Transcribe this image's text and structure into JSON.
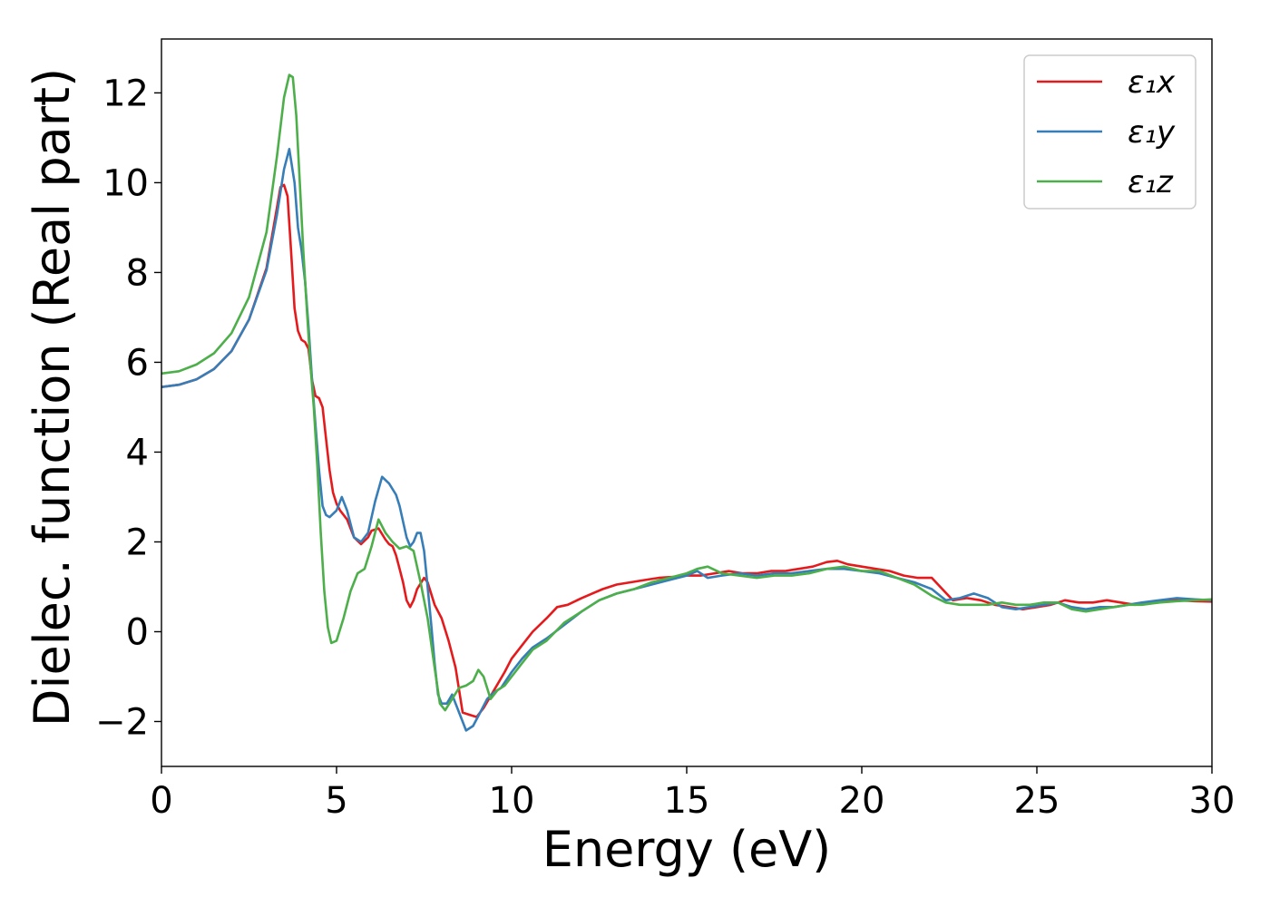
{
  "chart_data": {
    "type": "line",
    "title": "",
    "xlabel": "Energy (eV)",
    "ylabel": "Dielec. function (Real part)",
    "xlim": [
      0,
      30
    ],
    "ylim": [
      -3,
      13.2
    ],
    "xticks": [
      0,
      5,
      10,
      15,
      20,
      25,
      30
    ],
    "yticks": [
      -2,
      0,
      2,
      4,
      6,
      8,
      10,
      12
    ],
    "ytick_labels": [
      "−2",
      "0",
      "2",
      "4",
      "6",
      "8",
      "10",
      "12"
    ],
    "grid": false,
    "legend_position": "top-right",
    "series": [
      {
        "name": "ε₁x",
        "color": "#e41a1c",
        "points": [
          [
            0,
            5.45
          ],
          [
            0.5,
            5.5
          ],
          [
            1,
            5.62
          ],
          [
            1.5,
            5.85
          ],
          [
            2,
            6.25
          ],
          [
            2.5,
            6.95
          ],
          [
            3,
            8.1
          ],
          [
            3.2,
            9.0
          ],
          [
            3.4,
            9.9
          ],
          [
            3.5,
            9.95
          ],
          [
            3.6,
            9.7
          ],
          [
            3.7,
            8.5
          ],
          [
            3.8,
            7.2
          ],
          [
            3.9,
            6.7
          ],
          [
            4.0,
            6.5
          ],
          [
            4.1,
            6.45
          ],
          [
            4.2,
            6.3
          ],
          [
            4.3,
            5.6
          ],
          [
            4.4,
            5.25
          ],
          [
            4.5,
            5.2
          ],
          [
            4.6,
            5.0
          ],
          [
            4.7,
            4.3
          ],
          [
            4.8,
            3.6
          ],
          [
            4.9,
            3.1
          ],
          [
            5.0,
            2.85
          ],
          [
            5.1,
            2.7
          ],
          [
            5.3,
            2.5
          ],
          [
            5.5,
            2.1
          ],
          [
            5.7,
            1.95
          ],
          [
            5.9,
            2.1
          ],
          [
            6.0,
            2.25
          ],
          [
            6.2,
            2.3
          ],
          [
            6.4,
            2.05
          ],
          [
            6.5,
            1.95
          ],
          [
            6.6,
            1.9
          ],
          [
            6.7,
            1.7
          ],
          [
            6.8,
            1.4
          ],
          [
            6.9,
            1.1
          ],
          [
            7.0,
            0.7
          ],
          [
            7.1,
            0.55
          ],
          [
            7.2,
            0.7
          ],
          [
            7.3,
            0.95
          ],
          [
            7.5,
            1.2
          ],
          [
            7.6,
            1.1
          ],
          [
            7.8,
            0.6
          ],
          [
            8.0,
            0.3
          ],
          [
            8.2,
            -0.2
          ],
          [
            8.4,
            -0.8
          ],
          [
            8.5,
            -1.3
          ],
          [
            8.6,
            -1.8
          ],
          [
            8.8,
            -1.85
          ],
          [
            9.0,
            -1.9
          ],
          [
            9.2,
            -1.7
          ],
          [
            9.5,
            -1.3
          ],
          [
            9.8,
            -0.9
          ],
          [
            10,
            -0.6
          ],
          [
            10.3,
            -0.3
          ],
          [
            10.6,
            0.0
          ],
          [
            11,
            0.3
          ],
          [
            11.3,
            0.55
          ],
          [
            11.6,
            0.6
          ],
          [
            12,
            0.75
          ],
          [
            12.3,
            0.85
          ],
          [
            12.6,
            0.95
          ],
          [
            13,
            1.05
          ],
          [
            13.4,
            1.1
          ],
          [
            13.8,
            1.15
          ],
          [
            14.2,
            1.2
          ],
          [
            14.6,
            1.22
          ],
          [
            15,
            1.25
          ],
          [
            15.4,
            1.25
          ],
          [
            15.8,
            1.3
          ],
          [
            16.2,
            1.35
          ],
          [
            16.6,
            1.3
          ],
          [
            17,
            1.3
          ],
          [
            17.4,
            1.35
          ],
          [
            17.8,
            1.35
          ],
          [
            18.2,
            1.4
          ],
          [
            18.6,
            1.45
          ],
          [
            19,
            1.55
          ],
          [
            19.3,
            1.58
          ],
          [
            19.6,
            1.5
          ],
          [
            20,
            1.45
          ],
          [
            20.4,
            1.4
          ],
          [
            20.8,
            1.35
          ],
          [
            21.2,
            1.25
          ],
          [
            21.6,
            1.2
          ],
          [
            22,
            1.2
          ],
          [
            22.3,
            0.95
          ],
          [
            22.6,
            0.7
          ],
          [
            23,
            0.75
          ],
          [
            23.4,
            0.7
          ],
          [
            23.8,
            0.6
          ],
          [
            24.2,
            0.55
          ],
          [
            24.6,
            0.5
          ],
          [
            25,
            0.55
          ],
          [
            25.4,
            0.6
          ],
          [
            25.8,
            0.7
          ],
          [
            26.2,
            0.65
          ],
          [
            26.6,
            0.65
          ],
          [
            27,
            0.7
          ],
          [
            27.4,
            0.65
          ],
          [
            27.8,
            0.6
          ],
          [
            28.2,
            0.65
          ],
          [
            28.6,
            0.7
          ],
          [
            29,
            0.7
          ],
          [
            29.5,
            0.68
          ],
          [
            30,
            0.67
          ]
        ]
      },
      {
        "name": "ε₁y",
        "color": "#377eb8",
        "points": [
          [
            0,
            5.45
          ],
          [
            0.5,
            5.5
          ],
          [
            1,
            5.62
          ],
          [
            1.5,
            5.85
          ],
          [
            2,
            6.25
          ],
          [
            2.5,
            6.95
          ],
          [
            3,
            8.05
          ],
          [
            3.3,
            9.3
          ],
          [
            3.5,
            10.3
          ],
          [
            3.65,
            10.75
          ],
          [
            3.8,
            10.0
          ],
          [
            3.9,
            9.0
          ],
          [
            4.0,
            8.5
          ],
          [
            4.1,
            7.8
          ],
          [
            4.2,
            6.8
          ],
          [
            4.3,
            5.6
          ],
          [
            4.4,
            4.6
          ],
          [
            4.5,
            3.6
          ],
          [
            4.6,
            2.8
          ],
          [
            4.7,
            2.6
          ],
          [
            4.8,
            2.55
          ],
          [
            5.0,
            2.7
          ],
          [
            5.15,
            3.0
          ],
          [
            5.3,
            2.7
          ],
          [
            5.5,
            2.1
          ],
          [
            5.7,
            2.0
          ],
          [
            5.9,
            2.2
          ],
          [
            6.1,
            2.9
          ],
          [
            6.3,
            3.45
          ],
          [
            6.5,
            3.3
          ],
          [
            6.7,
            3.05
          ],
          [
            6.8,
            2.8
          ],
          [
            7.0,
            2.1
          ],
          [
            7.1,
            1.9
          ],
          [
            7.2,
            2.0
          ],
          [
            7.3,
            2.2
          ],
          [
            7.4,
            2.2
          ],
          [
            7.5,
            1.8
          ],
          [
            7.6,
            1.0
          ],
          [
            7.7,
            0.2
          ],
          [
            7.8,
            -0.7
          ],
          [
            7.9,
            -1.4
          ],
          [
            8.0,
            -1.6
          ],
          [
            8.15,
            -1.6
          ],
          [
            8.3,
            -1.4
          ],
          [
            8.5,
            -1.8
          ],
          [
            8.7,
            -2.2
          ],
          [
            8.9,
            -2.1
          ],
          [
            9.1,
            -1.8
          ],
          [
            9.3,
            -1.5
          ],
          [
            9.5,
            -1.35
          ],
          [
            9.7,
            -1.25
          ],
          [
            10,
            -0.9
          ],
          [
            10.3,
            -0.6
          ],
          [
            10.6,
            -0.35
          ],
          [
            11,
            -0.15
          ],
          [
            11.5,
            0.15
          ],
          [
            12,
            0.45
          ],
          [
            12.5,
            0.7
          ],
          [
            13,
            0.85
          ],
          [
            13.5,
            0.95
          ],
          [
            14,
            1.05
          ],
          [
            14.5,
            1.15
          ],
          [
            15,
            1.25
          ],
          [
            15.3,
            1.35
          ],
          [
            15.6,
            1.2
          ],
          [
            16,
            1.25
          ],
          [
            16.5,
            1.3
          ],
          [
            17,
            1.25
          ],
          [
            17.5,
            1.3
          ],
          [
            18,
            1.3
          ],
          [
            18.5,
            1.35
          ],
          [
            19,
            1.4
          ],
          [
            19.5,
            1.4
          ],
          [
            20,
            1.35
          ],
          [
            20.5,
            1.3
          ],
          [
            21,
            1.2
          ],
          [
            21.5,
            1.1
          ],
          [
            22,
            0.95
          ],
          [
            22.4,
            0.7
          ],
          [
            22.8,
            0.75
          ],
          [
            23.2,
            0.85
          ],
          [
            23.6,
            0.75
          ],
          [
            24,
            0.55
          ],
          [
            24.4,
            0.5
          ],
          [
            24.8,
            0.55
          ],
          [
            25.2,
            0.6
          ],
          [
            25.6,
            0.65
          ],
          [
            26,
            0.55
          ],
          [
            26.4,
            0.5
          ],
          [
            26.8,
            0.55
          ],
          [
            27.2,
            0.55
          ],
          [
            27.6,
            0.6
          ],
          [
            28,
            0.65
          ],
          [
            28.5,
            0.7
          ],
          [
            29,
            0.75
          ],
          [
            29.5,
            0.72
          ],
          [
            30,
            0.7
          ]
        ]
      },
      {
        "name": "ε₁z",
        "color": "#4daf4a",
        "points": [
          [
            0,
            5.75
          ],
          [
            0.5,
            5.8
          ],
          [
            1,
            5.95
          ],
          [
            1.5,
            6.2
          ],
          [
            2,
            6.65
          ],
          [
            2.5,
            7.45
          ],
          [
            3,
            8.9
          ],
          [
            3.3,
            10.6
          ],
          [
            3.5,
            11.9
          ],
          [
            3.65,
            12.4
          ],
          [
            3.75,
            12.35
          ],
          [
            3.85,
            11.5
          ],
          [
            3.95,
            10.0
          ],
          [
            4.05,
            8.5
          ],
          [
            4.15,
            7.2
          ],
          [
            4.25,
            6.0
          ],
          [
            4.35,
            5.0
          ],
          [
            4.45,
            3.7
          ],
          [
            4.55,
            2.2
          ],
          [
            4.65,
            0.9
          ],
          [
            4.75,
            0.1
          ],
          [
            4.85,
            -0.25
          ],
          [
            5.0,
            -0.2
          ],
          [
            5.2,
            0.3
          ],
          [
            5.4,
            0.9
          ],
          [
            5.6,
            1.3
          ],
          [
            5.8,
            1.4
          ],
          [
            6.0,
            1.9
          ],
          [
            6.2,
            2.5
          ],
          [
            6.4,
            2.2
          ],
          [
            6.6,
            2.0
          ],
          [
            6.8,
            1.85
          ],
          [
            7.0,
            1.9
          ],
          [
            7.2,
            1.8
          ],
          [
            7.4,
            1.1
          ],
          [
            7.6,
            0.3
          ],
          [
            7.8,
            -0.8
          ],
          [
            7.95,
            -1.6
          ],
          [
            8.1,
            -1.75
          ],
          [
            8.3,
            -1.5
          ],
          [
            8.5,
            -1.25
          ],
          [
            8.7,
            -1.2
          ],
          [
            8.9,
            -1.1
          ],
          [
            9.05,
            -0.85
          ],
          [
            9.2,
            -1.0
          ],
          [
            9.4,
            -1.5
          ],
          [
            9.6,
            -1.3
          ],
          [
            9.8,
            -1.2
          ],
          [
            10,
            -1.0
          ],
          [
            10.3,
            -0.7
          ],
          [
            10.6,
            -0.4
          ],
          [
            11,
            -0.2
          ],
          [
            11.5,
            0.2
          ],
          [
            12,
            0.45
          ],
          [
            12.5,
            0.7
          ],
          [
            13,
            0.85
          ],
          [
            13.5,
            0.95
          ],
          [
            14,
            1.1
          ],
          [
            14.5,
            1.2
          ],
          [
            15,
            1.3
          ],
          [
            15.3,
            1.4
          ],
          [
            15.6,
            1.45
          ],
          [
            16,
            1.3
          ],
          [
            16.5,
            1.25
          ],
          [
            17,
            1.2
          ],
          [
            17.5,
            1.25
          ],
          [
            18,
            1.25
          ],
          [
            18.5,
            1.3
          ],
          [
            19,
            1.4
          ],
          [
            19.5,
            1.45
          ],
          [
            20,
            1.35
          ],
          [
            20.5,
            1.35
          ],
          [
            21,
            1.2
          ],
          [
            21.5,
            1.05
          ],
          [
            22,
            0.8
          ],
          [
            22.4,
            0.65
          ],
          [
            22.8,
            0.6
          ],
          [
            23.2,
            0.6
          ],
          [
            23.6,
            0.6
          ],
          [
            24,
            0.65
          ],
          [
            24.4,
            0.6
          ],
          [
            24.8,
            0.6
          ],
          [
            25.2,
            0.65
          ],
          [
            25.6,
            0.65
          ],
          [
            26,
            0.5
          ],
          [
            26.4,
            0.45
          ],
          [
            26.8,
            0.5
          ],
          [
            27.2,
            0.55
          ],
          [
            27.6,
            0.6
          ],
          [
            28,
            0.6
          ],
          [
            28.5,
            0.65
          ],
          [
            29,
            0.68
          ],
          [
            29.5,
            0.7
          ],
          [
            30,
            0.72
          ]
        ]
      }
    ]
  }
}
